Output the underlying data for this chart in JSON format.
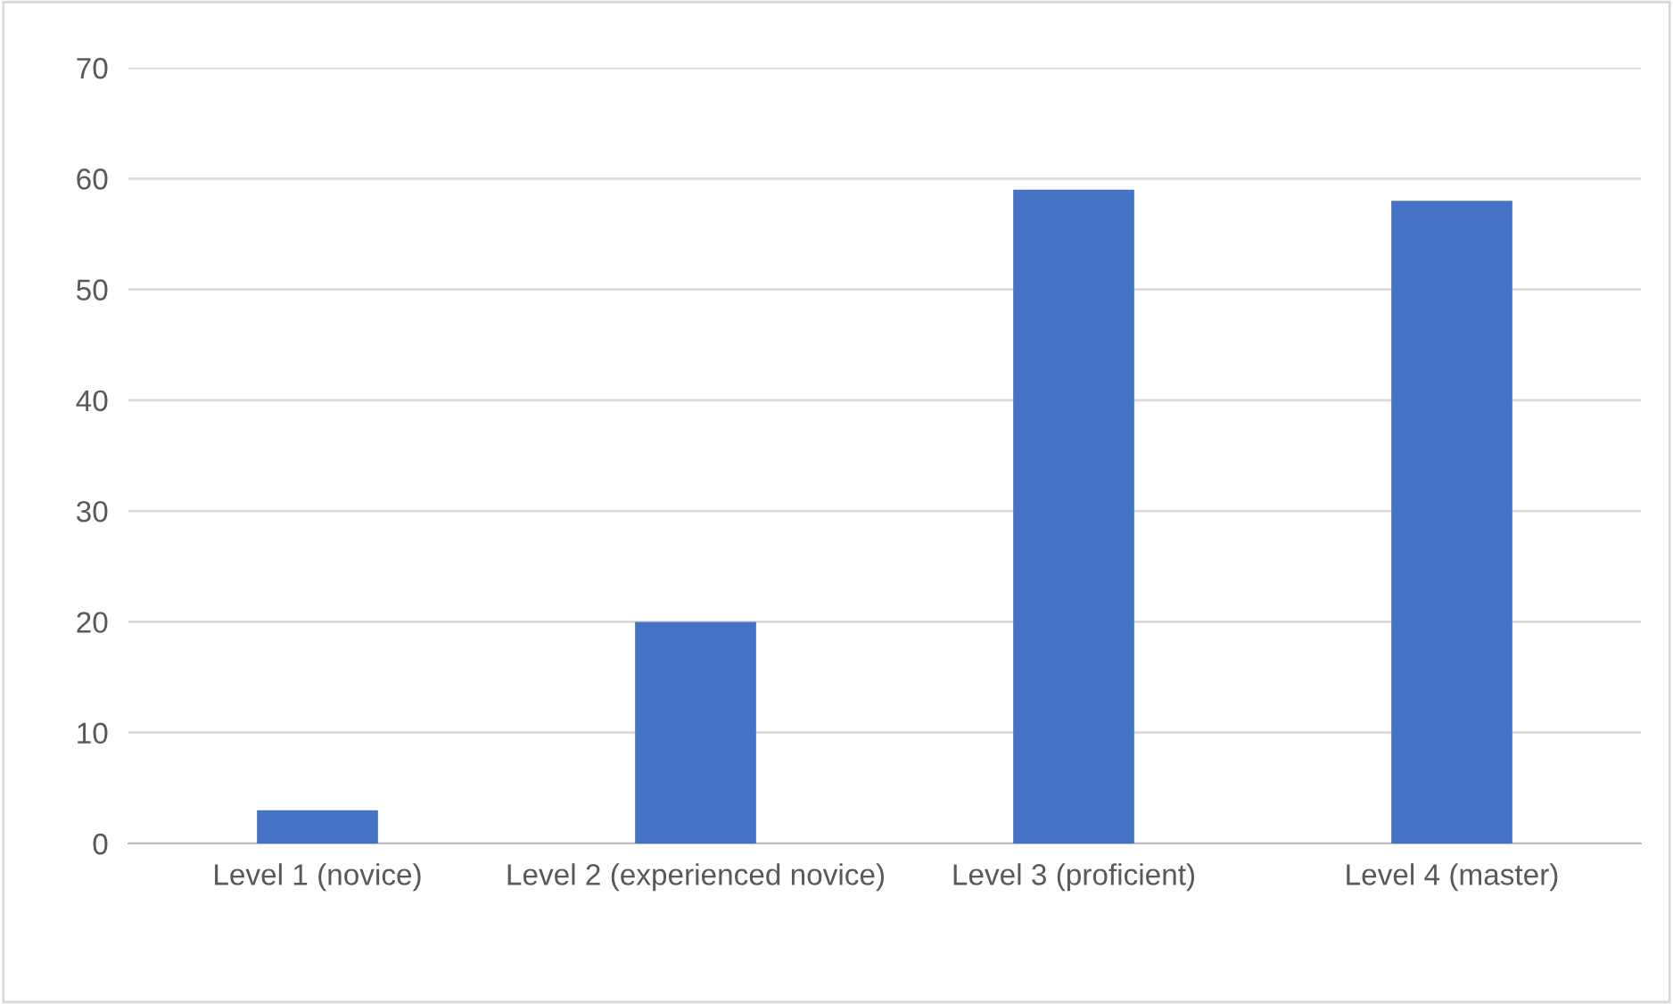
{
  "chart_data": {
    "type": "bar",
    "categories": [
      "Level 1 (novice)",
      "Level 2 (experienced novice)",
      "Level 3 (proficient)",
      "Level 4 (master)"
    ],
    "values": [
      3,
      20,
      59,
      58
    ],
    "color": "#4472c4",
    "ylim": [
      0,
      70
    ],
    "yticks": [
      0,
      10,
      20,
      30,
      40,
      50,
      60,
      70
    ],
    "grid": "y"
  }
}
